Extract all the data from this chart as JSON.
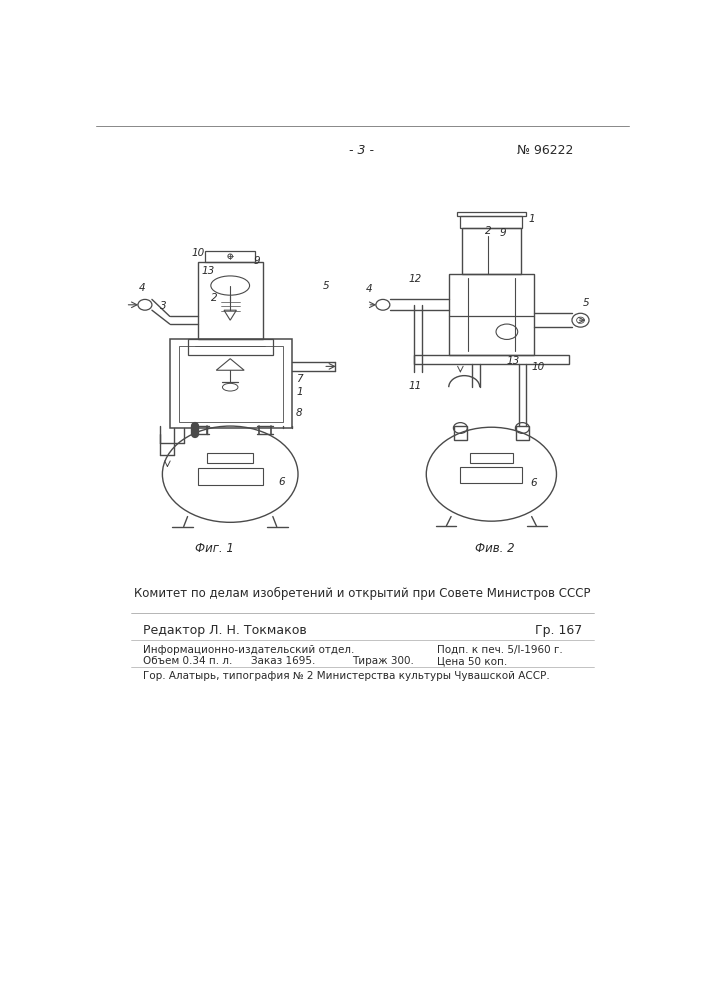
{
  "page_number": "- 3 -",
  "patent_number": "№ 96222",
  "fig1_caption": "Фиг. 1",
  "fig2_caption": "Фив. 2",
  "committee_text": "Комитет по делам изобретений и открытий при Совете Министров СССР",
  "editor_left": "Редактор Л. Н. Токмаков",
  "gr_text": "Гр. 167",
  "info_line1_left": "Информационно-издательский отдел.",
  "info_line1_right": "Подп. к печ. 5/I-1960 г.",
  "info_line2_a": "Объем 0.34 п. л.",
  "info_line2_b": "Заказ 1695.",
  "info_line2_c": "Тираж 300.",
  "info_line2_d": "Цена 50 коп.",
  "info_line3": "Гор. Алатырь, типография № 2 Министерства культуры Чувашской АССР.",
  "bg_color": "#ffffff",
  "line_color": "#4a4a4a",
  "text_color": "#2a2a2a"
}
